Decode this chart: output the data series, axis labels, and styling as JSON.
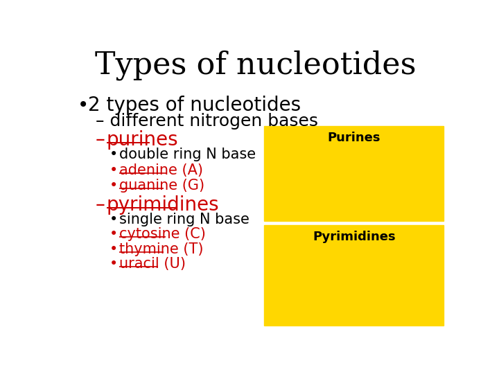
{
  "title": "Types of nucleotides",
  "title_fontsize": 32,
  "title_color": "#000000",
  "bg_color": "#ffffff",
  "bullet_color": "#000000",
  "red_color": "#cc0000",
  "yellow_box_color": "#FFD700",
  "bullet1": "2 types of nucleotides",
  "bullet1_fontsize": 20,
  "dash1": "– different nitrogen bases",
  "dash1_fontsize": 18,
  "dash2_fontsize": 20,
  "dash2_color": "#cc0000",
  "dash3_fontsize": 20,
  "dash3_color": "#cc0000",
  "sub_bullets_purines": [
    "double ring N base",
    "adenine (A)",
    "guanine (G)"
  ],
  "sub_bullets_purines_colors": [
    "#000000",
    "#cc0000",
    "#cc0000"
  ],
  "sub_bullets_purines_underline": [
    false,
    true,
    true
  ],
  "sub_bullets_pyrimidines": [
    "single ring N base",
    "cytosine (C)",
    "thymine (T)",
    "uracil (U)"
  ],
  "sub_bullets_pyrimidines_colors": [
    "#000000",
    "#cc0000",
    "#cc0000",
    "#cc0000"
  ],
  "sub_bullets_pyrimidines_underline": [
    false,
    true,
    true,
    true
  ],
  "purines_box_label": "Purines",
  "pyrimidines_box_label": "Pyrimidines"
}
